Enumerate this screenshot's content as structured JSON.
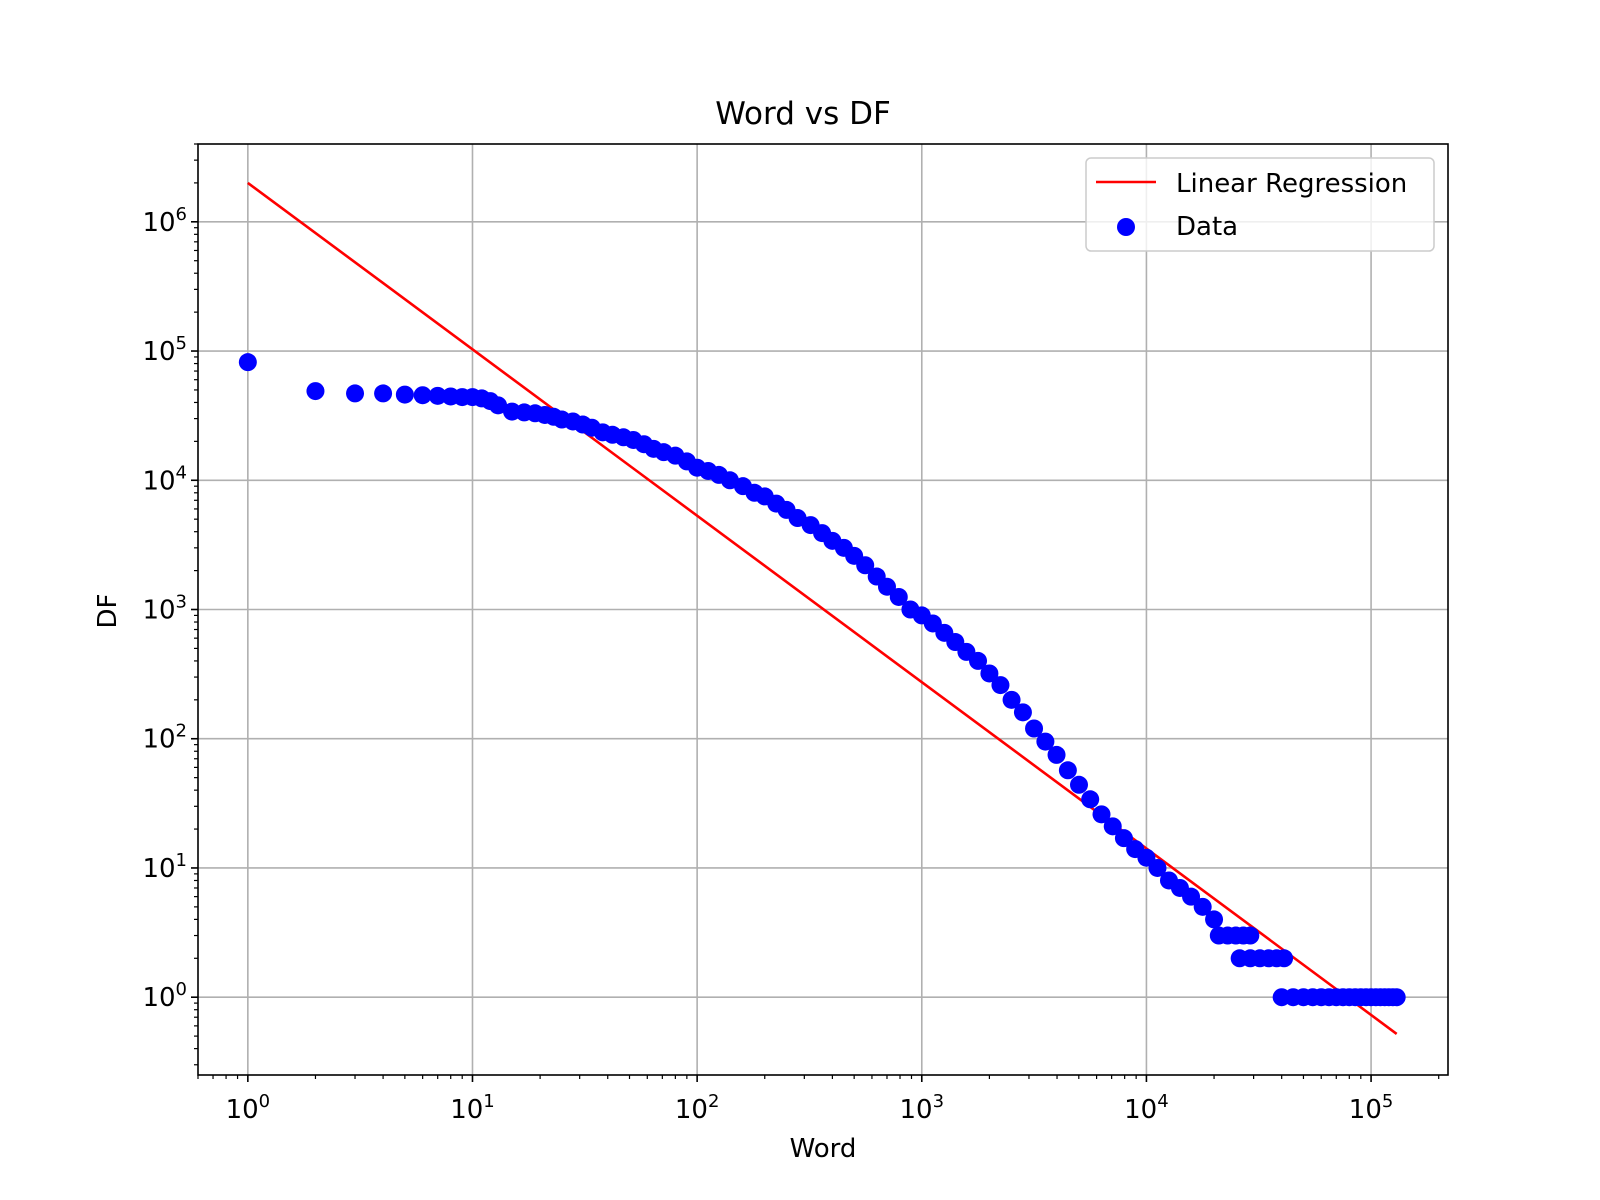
{
  "chart_data": {
    "type": "scatter",
    "title": "Word vs DF",
    "xlabel": "Word",
    "ylabel": "DF",
    "xscale": "log",
    "yscale": "log",
    "xlim": [
      0.6,
      220000
    ],
    "ylim": [
      0.25,
      4000000
    ],
    "grid": true,
    "legend_position": "top-right",
    "x_ticks": [
      {
        "value": 1,
        "base": "10",
        "exp": "0"
      },
      {
        "value": 10,
        "base": "10",
        "exp": "1"
      },
      {
        "value": 100,
        "base": "10",
        "exp": "2"
      },
      {
        "value": 1000,
        "base": "10",
        "exp": "3"
      },
      {
        "value": 10000,
        "base": "10",
        "exp": "4"
      },
      {
        "value": 100000,
        "base": "10",
        "exp": "5"
      }
    ],
    "y_ticks": [
      {
        "value": 1,
        "base": "10",
        "exp": "0"
      },
      {
        "value": 10,
        "base": "10",
        "exp": "1"
      },
      {
        "value": 100,
        "base": "10",
        "exp": "2"
      },
      {
        "value": 1000,
        "base": "10",
        "exp": "3"
      },
      {
        "value": 10000,
        "base": "10",
        "exp": "4"
      },
      {
        "value": 100000,
        "base": "10",
        "exp": "5"
      },
      {
        "value": 1000000,
        "base": "10",
        "exp": "6"
      }
    ],
    "series": [
      {
        "name": "Data",
        "kind": "scatter",
        "color": "#0000ff",
        "points": [
          [
            1,
            82000
          ],
          [
            2,
            49000
          ],
          [
            3,
            47000
          ],
          [
            4,
            47000
          ],
          [
            5,
            46000
          ],
          [
            6,
            45500
          ],
          [
            7,
            45000
          ],
          [
            8,
            44500
          ],
          [
            9,
            44000
          ],
          [
            10,
            44000
          ],
          [
            11,
            43000
          ],
          [
            12,
            41000
          ],
          [
            13,
            38000
          ],
          [
            15,
            34000
          ],
          [
            17,
            33500
          ],
          [
            19,
            33000
          ],
          [
            21,
            32000
          ],
          [
            23,
            31000
          ],
          [
            25,
            29500
          ],
          [
            28,
            28500
          ],
          [
            31,
            27000
          ],
          [
            34,
            25500
          ],
          [
            38,
            23500
          ],
          [
            42,
            22500
          ],
          [
            47,
            21500
          ],
          [
            52,
            20500
          ],
          [
            58,
            19000
          ],
          [
            64,
            17500
          ],
          [
            71,
            16500
          ],
          [
            80,
            15500
          ],
          [
            90,
            14000
          ],
          [
            100,
            12500
          ],
          [
            112,
            11800
          ],
          [
            125,
            11000
          ],
          [
            140,
            10000
          ],
          [
            160,
            9000
          ],
          [
            180,
            8000
          ],
          [
            200,
            7500
          ],
          [
            225,
            6600
          ],
          [
            250,
            5900
          ],
          [
            280,
            5100
          ],
          [
            320,
            4500
          ],
          [
            360,
            3900
          ],
          [
            400,
            3400
          ],
          [
            450,
            3000
          ],
          [
            500,
            2600
          ],
          [
            560,
            2200
          ],
          [
            630,
            1800
          ],
          [
            700,
            1500
          ],
          [
            790,
            1250
          ],
          [
            890,
            1000
          ],
          [
            1000,
            900
          ],
          [
            1120,
            780
          ],
          [
            1260,
            660
          ],
          [
            1410,
            560
          ],
          [
            1580,
            470
          ],
          [
            1780,
            400
          ],
          [
            2000,
            320
          ],
          [
            2240,
            260
          ],
          [
            2510,
            200
          ],
          [
            2820,
            160
          ],
          [
            3160,
            120
          ],
          [
            3550,
            95
          ],
          [
            3980,
            75
          ],
          [
            4470,
            57
          ],
          [
            5010,
            44
          ],
          [
            5620,
            34
          ],
          [
            6310,
            26
          ],
          [
            7080,
            21
          ],
          [
            7940,
            17
          ],
          [
            8910,
            14
          ],
          [
            10000,
            12
          ],
          [
            11200,
            10
          ],
          [
            12600,
            8
          ],
          [
            14100,
            7
          ],
          [
            15800,
            6
          ],
          [
            17800,
            5
          ],
          [
            20000,
            4
          ],
          [
            21000,
            3
          ],
          [
            23000,
            3
          ],
          [
            25000,
            3
          ],
          [
            27000,
            3
          ],
          [
            29000,
            3
          ],
          [
            26000,
            2
          ],
          [
            29000,
            2
          ],
          [
            32000,
            2
          ],
          [
            35000,
            2
          ],
          [
            38000,
            2
          ],
          [
            41000,
            2
          ],
          [
            40000,
            1
          ],
          [
            45000,
            1
          ],
          [
            50000,
            1
          ],
          [
            55000,
            1
          ],
          [
            60000,
            1
          ],
          [
            65000,
            1
          ],
          [
            70000,
            1
          ],
          [
            75000,
            1
          ],
          [
            80000,
            1
          ],
          [
            85000,
            1
          ],
          [
            90000,
            1
          ],
          [
            95000,
            1
          ],
          [
            100000,
            1
          ],
          [
            105000,
            1
          ],
          [
            110000,
            1
          ],
          [
            115000,
            1
          ],
          [
            120000,
            1
          ],
          [
            125000,
            1
          ],
          [
            130000,
            1
          ]
        ]
      },
      {
        "name": "Linear Regression",
        "kind": "line",
        "color": "#ff0000",
        "points": [
          [
            1,
            2000000
          ],
          [
            130000,
            0.52
          ]
        ]
      }
    ]
  }
}
